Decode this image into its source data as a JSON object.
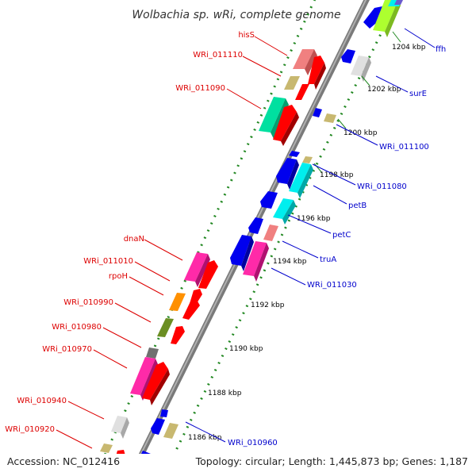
{
  "title": "Wolbachia sp. wRi, complete genome",
  "accession": "Accession: NC_012416",
  "topology": "Topology: circular; Length: 1,445,873 bp; Genes: 1,187",
  "colors": {
    "left_label": "#dd0000",
    "right_label": "#0000cc",
    "backbone": "#909090",
    "dots": "#228822"
  },
  "kbp_marks": [
    "1204 kbp",
    "1202 kbp",
    "1200 kbp",
    "1198 kbp",
    "1196 kbp",
    "1194 kbp",
    "1192 kbp",
    "1190 kbp",
    "1188 kbp",
    "1186 kbp"
  ],
  "left_labels": [
    "hisS",
    "WRi_011110",
    "WRi_011090",
    "dnaN",
    "WRi_011010",
    "rpoH",
    "WRi_010990",
    "WRi_010980",
    "WRi_010970",
    "WRi_010940",
    "WRi_010920"
  ],
  "right_labels": [
    "ffh",
    "surE",
    "WRi_011100",
    "WRi_011080",
    "petB",
    "petC",
    "truA",
    "WRi_011030",
    "WRi_010960"
  ]
}
